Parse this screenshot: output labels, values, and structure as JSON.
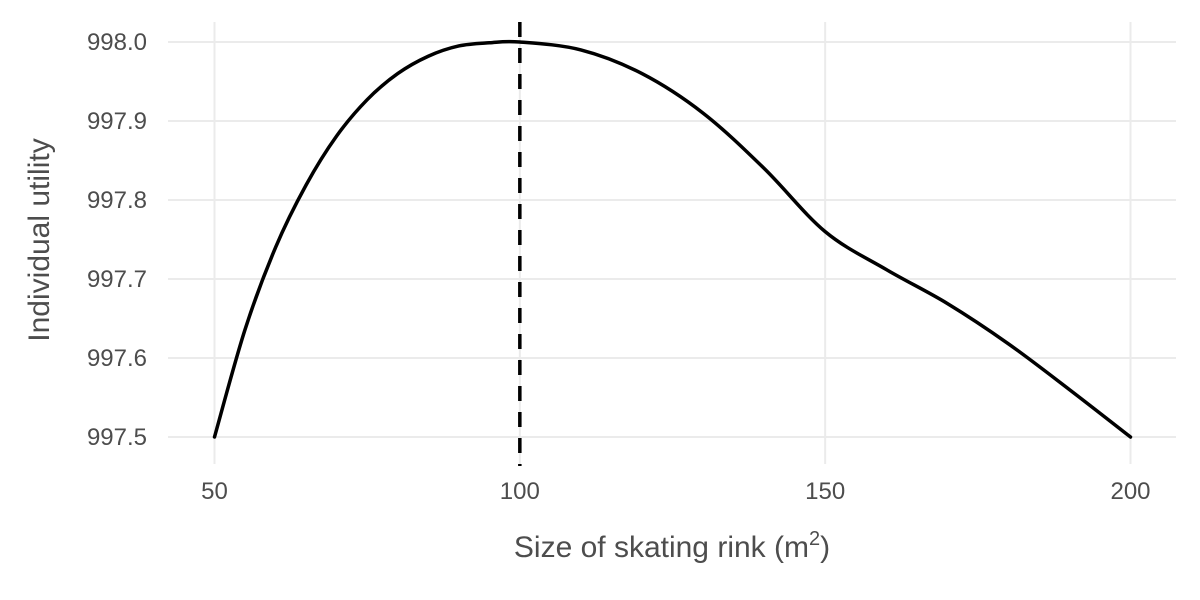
{
  "chart_data": {
    "type": "line",
    "title": "",
    "xlabel": "Size of skating rink (m",
    "xlabel_superscript": "2",
    "xlabel_suffix": ")",
    "ylabel": "Individual utility",
    "xlim": [
      50,
      200
    ],
    "ylim": [
      997.5,
      998.0
    ],
    "x_ticks": [
      50,
      100,
      150,
      200
    ],
    "x_tick_labels": [
      "50",
      "100",
      "150",
      "200"
    ],
    "y_ticks": [
      997.5,
      997.6,
      997.7,
      997.8,
      997.9,
      998.0
    ],
    "y_tick_labels": [
      "997.5",
      "997.6",
      "997.7",
      "997.8",
      "997.9",
      "998.0"
    ],
    "grid": true,
    "series": [
      {
        "color": "#000000",
        "x": [
          50,
          55,
          60,
          65,
          70,
          75,
          80,
          85,
          90,
          95,
          100,
          110,
          120,
          130,
          140,
          150,
          160,
          170,
          180,
          190,
          200
        ],
        "y": [
          997.5,
          997.636,
          997.74,
          997.819,
          997.881,
          997.927,
          997.96,
          997.982,
          997.995,
          997.999,
          998.0,
          997.99,
          997.96,
          997.91,
          997.84,
          997.76,
          997.712,
          997.669,
          997.618,
          997.56,
          997.5
        ]
      }
    ],
    "reference_line": {
      "x": 100,
      "style": "dashed",
      "color": "#000000"
    }
  }
}
